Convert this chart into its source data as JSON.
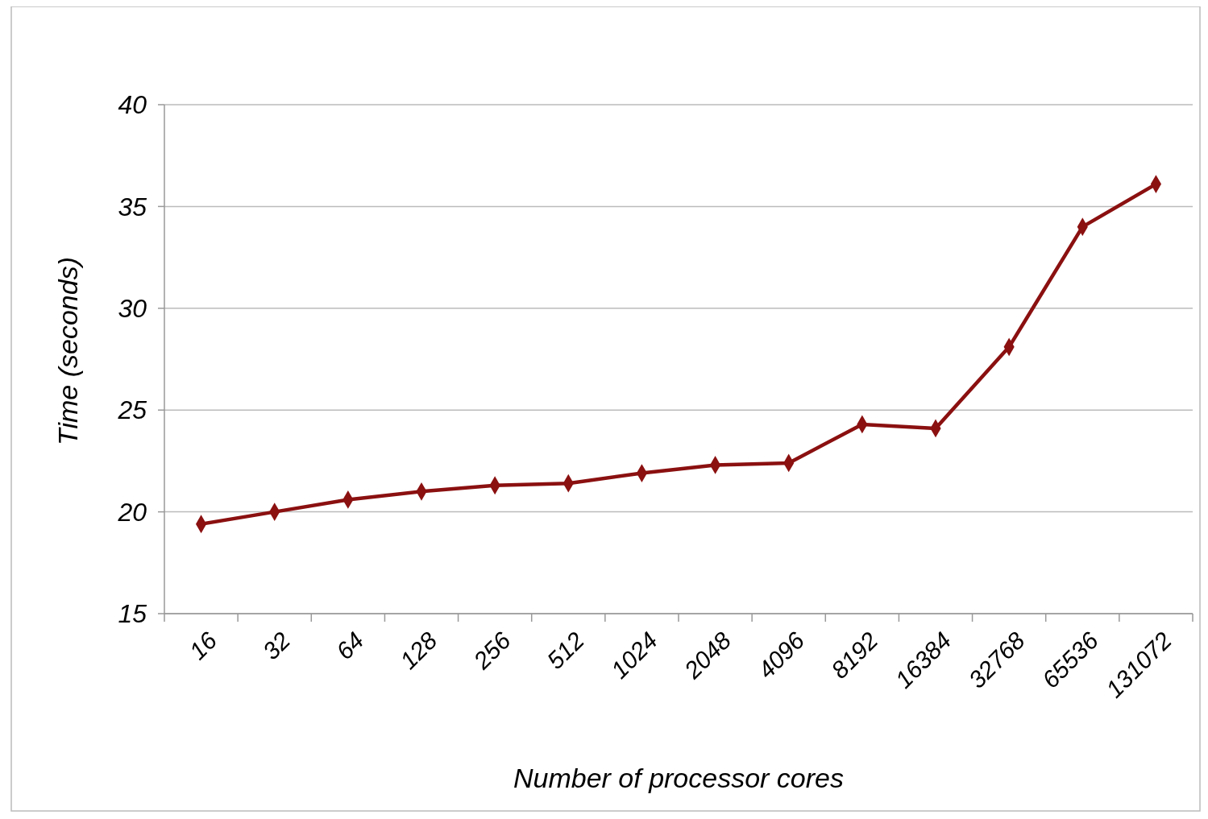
{
  "chart_data": {
    "type": "line",
    "xlabel": "Number of processor cores",
    "ylabel": "Time (seconds)",
    "categories": [
      "16",
      "32",
      "64",
      "128",
      "256",
      "512",
      "1024",
      "2048",
      "4096",
      "8192",
      "16384",
      "32768",
      "65536",
      "131072"
    ],
    "series": [
      {
        "color": "#8b1010",
        "values": [
          19.4,
          20.0,
          20.6,
          21.0,
          21.3,
          21.4,
          21.9,
          22.3,
          22.4,
          24.3,
          24.1,
          28.1,
          34.0,
          36.1
        ]
      }
    ],
    "ylim": [
      15,
      40
    ],
    "yticks": [
      15,
      20,
      25,
      30,
      35,
      40
    ],
    "grid": "y",
    "marker": "diamond",
    "line_style": "solid"
  }
}
